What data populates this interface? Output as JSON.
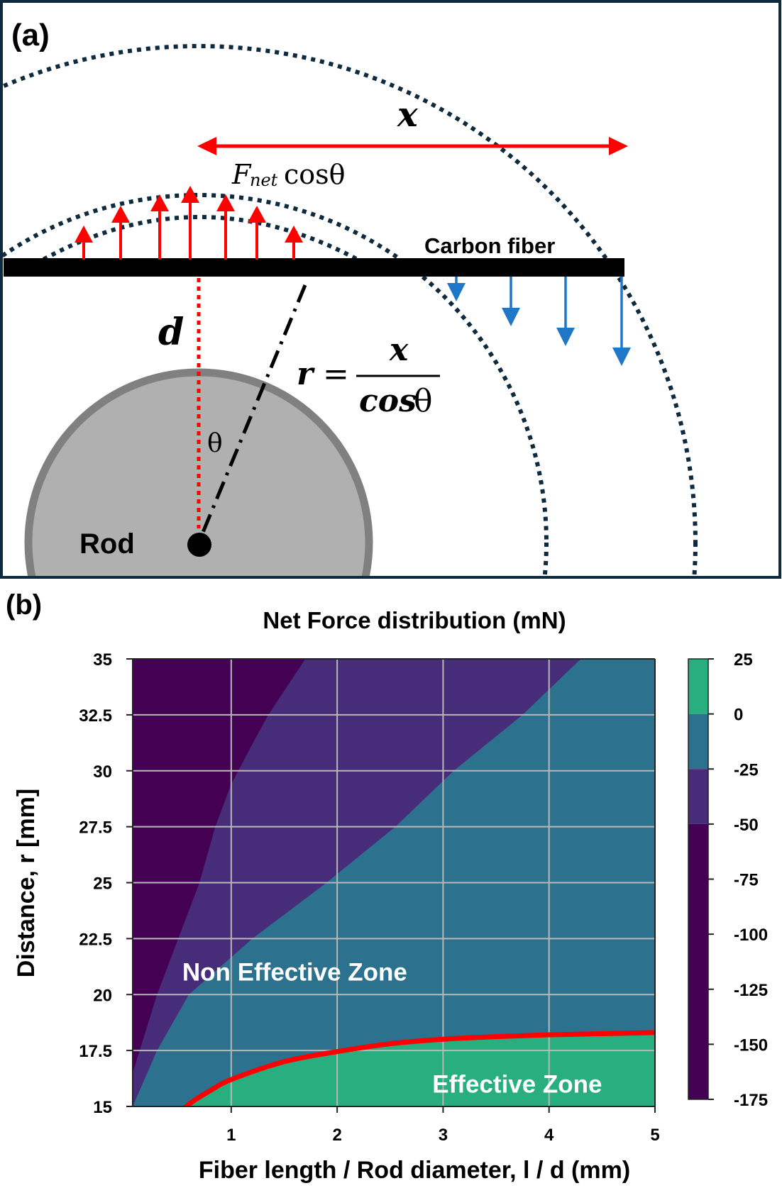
{
  "panel_a": {
    "label": "(a)",
    "x_symbol": "x",
    "force_label_main": "F",
    "force_label_sub": "net",
    "force_label_tail": "cosθ",
    "fiber_label": "Carbon fiber",
    "d_symbol": "d",
    "r_symbol": "r",
    "equals": "=",
    "frac_num": "x",
    "frac_den_italic": "cos",
    "frac_den_theta": "θ",
    "theta": "θ",
    "rod_label": "Rod",
    "colors": {
      "frame": "#0d2a3f",
      "arrow_up": "#ff0000",
      "arrow_down": "#1f77c8",
      "fiber": "#000000",
      "rod_fill": "#b0b0b0",
      "rod_edge": "#808080",
      "dotted": "#0d2a3f"
    }
  },
  "panel_b": {
    "label": "(b)",
    "zone_labels": {
      "non_effective": "Non Effective Zone",
      "effective": "Effective Zone"
    }
  },
  "chart_data": {
    "type": "heatmap",
    "subtype": "filled-contour",
    "title": "Net Force distribution (mN)",
    "xlabel": "Fiber length / Rod diameter, l / d (mm)",
    "ylabel": "Distance, r [mm]",
    "xlim": [
      0.07,
      5
    ],
    "ylim": [
      15,
      35
    ],
    "x_ticks": [
      1,
      2,
      3,
      4,
      5
    ],
    "x_tick_labels": [
      "1",
      "2",
      "3",
      "4",
      "5"
    ],
    "y_ticks": [
      15,
      17.5,
      20,
      22.5,
      25,
      27.5,
      30,
      32.5,
      35
    ],
    "y_tick_labels": [
      "15",
      "17.5",
      "20",
      "22.5",
      "25",
      "27.5",
      "30",
      "32.5",
      "35"
    ],
    "grid": true,
    "colorbar": {
      "ticks": [
        25,
        0,
        -25,
        -50,
        -75,
        -100,
        -125,
        -150,
        -175
      ],
      "tick_labels": [
        "25",
        "0",
        "-25",
        "-50",
        "-75",
        "-100",
        "-125",
        "-150",
        "-175"
      ],
      "levels": [
        {
          "range": [
            0,
            25
          ],
          "color": "#29af7f"
        },
        {
          "range": [
            -25,
            0
          ],
          "color": "#2c728e"
        },
        {
          "range": [
            -50,
            -25
          ],
          "color": "#472c7a"
        },
        {
          "range": [
            -175,
            -50
          ],
          "color": "#440154"
        }
      ]
    },
    "contour_boundaries": [
      {
        "level": -50,
        "points": [
          [
            0.07,
            16.5
          ],
          [
            0.3,
            20
          ],
          [
            0.5,
            22.5
          ],
          [
            0.7,
            25
          ],
          [
            0.85,
            27.5
          ],
          [
            1.0,
            29.4
          ],
          [
            1.2,
            31.2
          ],
          [
            1.35,
            32.5
          ],
          [
            1.7,
            35
          ]
        ]
      },
      {
        "level": -25,
        "points": [
          [
            0.07,
            15
          ],
          [
            0.3,
            17.5
          ],
          [
            0.6,
            20
          ],
          [
            1.2,
            22.5
          ],
          [
            1.9,
            25
          ],
          [
            2.55,
            27.5
          ],
          [
            3.1,
            30
          ],
          [
            3.75,
            32.5
          ],
          [
            4.3,
            35
          ]
        ]
      },
      {
        "level": 0,
        "points": [
          [
            0.55,
            15
          ],
          [
            0.8,
            15.7
          ],
          [
            1.0,
            16.2
          ],
          [
            1.5,
            17.0
          ],
          [
            2.0,
            17.45
          ],
          [
            2.5,
            17.8
          ],
          [
            3.0,
            18.0
          ],
          [
            3.5,
            18.12
          ],
          [
            4.0,
            18.2
          ],
          [
            4.5,
            18.25
          ],
          [
            5.0,
            18.3
          ]
        ]
      }
    ],
    "annotations": [
      {
        "text": "Non Effective Zone",
        "x": 1.6,
        "y": 21
      },
      {
        "text": "Effective Zone",
        "x": 3.7,
        "y": 16
      }
    ],
    "boundary_line_color": "#ff0000"
  }
}
